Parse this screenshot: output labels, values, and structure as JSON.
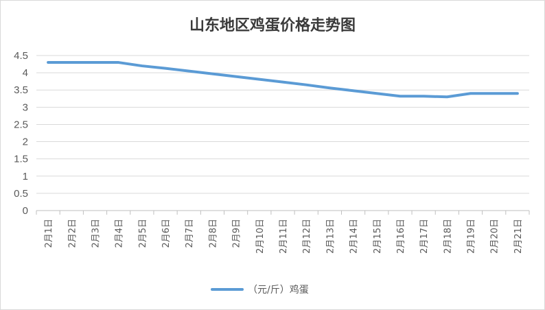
{
  "chart_data": {
    "type": "line",
    "title": "山东地区鸡蛋价格走势图",
    "categories": [
      "2月1日",
      "2月2日",
      "2月3日",
      "2月4日",
      "2月5日",
      "2月6日",
      "2月7日",
      "2月8日",
      "2月9日",
      "2月10日",
      "2月11日",
      "2月12日",
      "2月13日",
      "2月14日",
      "2月15日",
      "2月16日",
      "2月17日",
      "2月18日",
      "2月19日",
      "2月20日",
      "2月21日"
    ],
    "series": [
      {
        "name": "（元/斤）鸡蛋",
        "color": "#5b9bd5",
        "values": [
          4.3,
          4.3,
          4.3,
          4.3,
          4.2,
          4.13,
          4.05,
          3.97,
          3.89,
          3.81,
          3.73,
          3.65,
          3.56,
          3.48,
          3.4,
          3.32,
          3.32,
          3.3,
          3.4,
          3.4,
          3.4
        ]
      }
    ],
    "y_ticks": [
      "0",
      "0.5",
      "1",
      "1.5",
      "2",
      "2.5",
      "3",
      "3.5",
      "4",
      "4.5"
    ],
    "ylim": [
      0,
      4.5
    ],
    "grid": true,
    "legend": "bottom"
  }
}
